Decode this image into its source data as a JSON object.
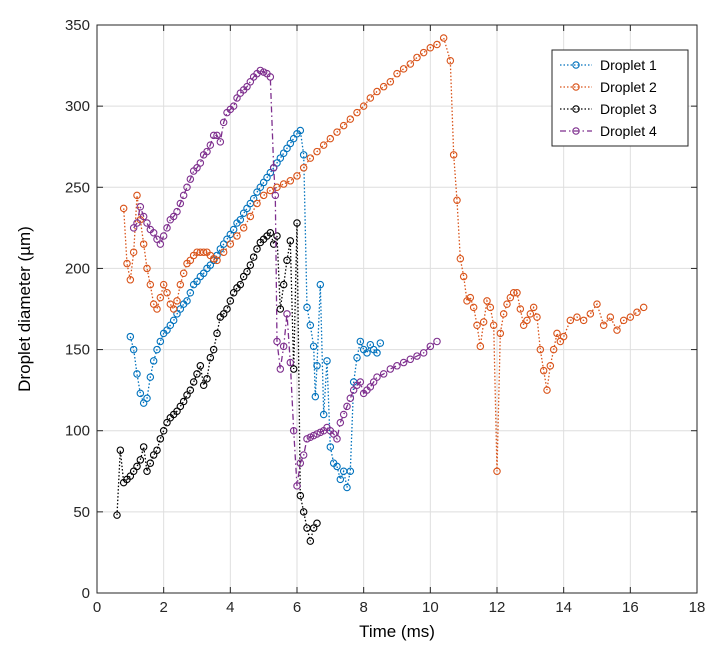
{
  "chart_data": {
    "type": "line",
    "title": "",
    "xlabel": "Time (ms)",
    "ylabel": "Droplet diameter (µm)",
    "xlim": [
      0,
      18
    ],
    "ylim": [
      0,
      350
    ],
    "xticks": [
      0,
      2,
      4,
      6,
      8,
      10,
      12,
      14,
      16,
      18
    ],
    "yticks": [
      0,
      50,
      100,
      150,
      200,
      250,
      300,
      350
    ],
    "grid": true,
    "legend_position": "top-right",
    "markers": "open-circle",
    "series": [
      {
        "name": "Droplet 1",
        "color": "#0072BD",
        "line_style": "dotted",
        "x": [
          1.0,
          1.1,
          1.2,
          1.3,
          1.4,
          1.5,
          1.6,
          1.7,
          1.8,
          1.9,
          2.0,
          2.1,
          2.2,
          2.3,
          2.4,
          2.5,
          2.6,
          2.7,
          2.8,
          2.9,
          3.0,
          3.1,
          3.2,
          3.3,
          3.4,
          3.5,
          3.6,
          3.7,
          3.8,
          3.9,
          4.0,
          4.1,
          4.2,
          4.3,
          4.4,
          4.5,
          4.6,
          4.7,
          4.8,
          4.9,
          5.0,
          5.1,
          5.2,
          5.3,
          5.4,
          5.5,
          5.6,
          5.7,
          5.8,
          5.9,
          6.0,
          6.1,
          6.2,
          6.3,
          6.4,
          6.5,
          6.55,
          6.6,
          6.7,
          6.8,
          6.9,
          7.0,
          7.1,
          7.2,
          7.3,
          7.4,
          7.5,
          7.6,
          7.7,
          7.8,
          7.9,
          8.0,
          8.1,
          8.2,
          8.3,
          8.4,
          8.5
        ],
        "y": [
          158,
          150,
          135,
          123,
          117,
          120,
          133,
          143,
          150,
          155,
          160,
          162,
          165,
          168,
          172,
          175,
          178,
          180,
          185,
          190,
          192,
          195,
          197,
          200,
          202,
          205,
          208,
          212,
          215,
          218,
          221,
          224,
          228,
          230,
          234,
          237,
          240,
          243,
          247,
          250,
          253,
          256,
          259,
          262,
          265,
          268,
          271,
          274,
          277,
          280,
          283,
          285,
          270,
          176,
          165,
          152,
          121,
          140,
          190,
          110,
          143,
          90,
          80,
          78,
          70,
          75,
          65,
          75,
          130,
          145,
          155,
          150,
          148,
          153,
          150,
          148,
          154
        ]
      },
      {
        "name": "Droplet 2",
        "color": "#D95319",
        "line_style": "dotted",
        "x": [
          0.8,
          0.9,
          1.0,
          1.1,
          1.2,
          1.3,
          1.4,
          1.5,
          1.6,
          1.7,
          1.8,
          1.9,
          2.0,
          2.1,
          2.2,
          2.3,
          2.4,
          2.5,
          2.6,
          2.7,
          2.8,
          2.9,
          3.0,
          3.1,
          3.2,
          3.3,
          3.4,
          3.5,
          3.6,
          3.8,
          4.0,
          4.2,
          4.4,
          4.6,
          4.8,
          5.0,
          5.2,
          5.4,
          5.6,
          5.8,
          6.0,
          6.2,
          6.4,
          6.6,
          6.8,
          7.0,
          7.2,
          7.4,
          7.6,
          7.8,
          8.0,
          8.2,
          8.4,
          8.6,
          8.8,
          9.0,
          9.2,
          9.4,
          9.6,
          9.8,
          10.0,
          10.2,
          10.4,
          10.6,
          10.7,
          10.8,
          10.9,
          11.0,
          11.1,
          11.2,
          11.3,
          11.4,
          11.5,
          11.6,
          11.7,
          11.8,
          11.9,
          12.0,
          12.1,
          12.2,
          12.3,
          12.4,
          12.5,
          12.6,
          12.7,
          12.8,
          12.9,
          13.0,
          13.1,
          13.2,
          13.3,
          13.4,
          13.5,
          13.6,
          13.7,
          13.8,
          13.9,
          14.0,
          14.2,
          14.4,
          14.6,
          14.8,
          15.0,
          15.2,
          15.4,
          15.6,
          15.8,
          16.0,
          16.2,
          16.4
        ],
        "y": [
          237,
          203,
          193,
          210,
          245,
          230,
          215,
          200,
          190,
          178,
          175,
          182,
          190,
          185,
          178,
          175,
          180,
          190,
          197,
          203,
          205,
          208,
          210,
          210,
          210,
          210,
          208,
          206,
          205,
          210,
          215,
          220,
          225,
          232,
          240,
          245,
          248,
          250,
          252,
          254,
          257,
          262,
          268,
          272,
          276,
          280,
          284,
          288,
          292,
          296,
          300,
          305,
          309,
          312,
          315,
          320,
          323,
          326,
          330,
          333,
          336,
          338,
          342,
          328,
          270,
          242,
          206,
          195,
          180,
          182,
          176,
          165,
          152,
          167,
          180,
          176,
          165,
          75,
          160,
          172,
          178,
          182,
          185,
          185,
          175,
          165,
          168,
          172,
          176,
          170,
          150,
          137,
          125,
          140,
          150,
          160,
          155,
          158,
          168,
          170,
          168,
          172,
          178,
          165,
          170,
          162,
          168,
          170,
          173,
          176
        ]
      },
      {
        "name": "Droplet 3",
        "color": "#000000",
        "line_style": "dotted",
        "x": [
          0.6,
          0.7,
          0.8,
          0.9,
          1.0,
          1.1,
          1.2,
          1.3,
          1.4,
          1.5,
          1.6,
          1.7,
          1.8,
          1.9,
          2.0,
          2.1,
          2.2,
          2.3,
          2.4,
          2.5,
          2.6,
          2.7,
          2.8,
          2.9,
          3.0,
          3.1,
          3.2,
          3.3,
          3.4,
          3.5,
          3.6,
          3.7,
          3.8,
          3.9,
          4.0,
          4.1,
          4.2,
          4.3,
          4.4,
          4.5,
          4.6,
          4.7,
          4.8,
          4.9,
          5.0,
          5.1,
          5.2,
          5.3,
          5.4,
          5.5,
          5.6,
          5.7,
          5.8,
          5.9,
          6.0,
          6.1,
          6.2,
          6.3,
          6.4,
          6.5,
          6.6
        ],
        "y": [
          48,
          88,
          68,
          70,
          72,
          75,
          78,
          82,
          90,
          75,
          80,
          85,
          88,
          95,
          100,
          105,
          108,
          110,
          112,
          115,
          118,
          122,
          125,
          130,
          135,
          140,
          128,
          132,
          145,
          150,
          160,
          170,
          172,
          175,
          180,
          185,
          188,
          190,
          195,
          198,
          202,
          207,
          212,
          216,
          218,
          220,
          222,
          215,
          220,
          175,
          190,
          205,
          217,
          138,
          228,
          60,
          50,
          40,
          32,
          40,
          43
        ]
      },
      {
        "name": "Droplet 4",
        "color": "#7E2F8E",
        "line_style": "dashdot",
        "x": [
          1.1,
          1.2,
          1.3,
          1.4,
          1.5,
          1.6,
          1.7,
          1.8,
          1.9,
          2.0,
          2.1,
          2.2,
          2.3,
          2.4,
          2.5,
          2.6,
          2.7,
          2.8,
          2.9,
          3.0,
          3.1,
          3.2,
          3.3,
          3.4,
          3.5,
          3.6,
          3.7,
          3.8,
          3.9,
          4.0,
          4.1,
          4.2,
          4.3,
          4.4,
          4.5,
          4.6,
          4.7,
          4.8,
          4.9,
          5.0,
          5.1,
          5.2,
          5.3,
          5.35,
          5.4,
          5.5,
          5.6,
          5.7,
          5.8,
          5.9,
          6.0,
          6.1,
          6.2,
          6.3,
          6.4,
          6.5,
          6.6,
          6.7,
          6.8,
          6.9,
          7.0,
          7.1,
          7.2,
          7.3,
          7.4,
          7.5,
          7.6,
          7.7,
          7.8,
          7.9,
          8.0,
          8.1,
          8.2,
          8.3,
          8.4,
          8.6,
          8.8,
          9.0,
          9.2,
          9.4,
          9.6,
          9.8,
          10.0,
          10.2
        ],
        "y": [
          225,
          228,
          238,
          232,
          228,
          224,
          222,
          218,
          215,
          220,
          225,
          230,
          232,
          235,
          240,
          245,
          250,
          255,
          260,
          262,
          265,
          270,
          272,
          276,
          282,
          282,
          278,
          290,
          296,
          298,
          300,
          305,
          308,
          310,
          312,
          315,
          318,
          320,
          322,
          321,
          320,
          318,
          262,
          245,
          155,
          138,
          152,
          172,
          142,
          100,
          66,
          80,
          85,
          95,
          96,
          97,
          98,
          99,
          100,
          102,
          100,
          98,
          95,
          105,
          110,
          115,
          120,
          125,
          128,
          130,
          123,
          125,
          127,
          130,
          133,
          135,
          138,
          140,
          142,
          144,
          146,
          148,
          152,
          155
        ]
      }
    ]
  }
}
